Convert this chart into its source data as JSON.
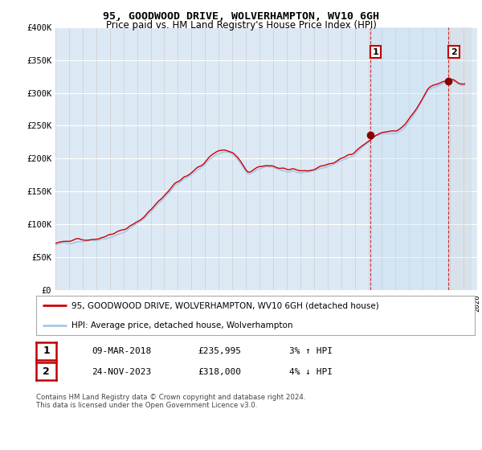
{
  "title": "95, GOODWOOD DRIVE, WOLVERHAMPTON, WV10 6GH",
  "subtitle": "Price paid vs. HM Land Registry's House Price Index (HPI)",
  "ylabel_ticks": [
    "£0",
    "£50K",
    "£100K",
    "£150K",
    "£200K",
    "£250K",
    "£300K",
    "£350K",
    "£400K"
  ],
  "ylim": [
    0,
    400000
  ],
  "xlim_start": 1995,
  "xlim_end": 2026,
  "bg_color": "#dce9f5",
  "grid_color": "#ffffff",
  "hpi_color": "#a8c8e8",
  "price_color": "#cc0000",
  "highlight_color": "#cce0f5",
  "legend1": "95, GOODWOOD DRIVE, WOLVERHAMPTON, WV10 6GH (detached house)",
  "legend2": "HPI: Average price, detached house, Wolverhampton",
  "annotation1_label": "1",
  "annotation1_date": "09-MAR-2018",
  "annotation1_price": "£235,995",
  "annotation1_hpi": "3% ↑ HPI",
  "annotation2_label": "2",
  "annotation2_date": "24-NOV-2023",
  "annotation2_price": "£318,000",
  "annotation2_hpi": "4% ↓ HPI",
  "footer": "Contains HM Land Registry data © Crown copyright and database right 2024.\nThis data is licensed under the Open Government Licence v3.0.",
  "sale1_x": 2018.17,
  "sale1_y": 235995,
  "sale2_x": 2023.9,
  "sale2_y": 318000
}
